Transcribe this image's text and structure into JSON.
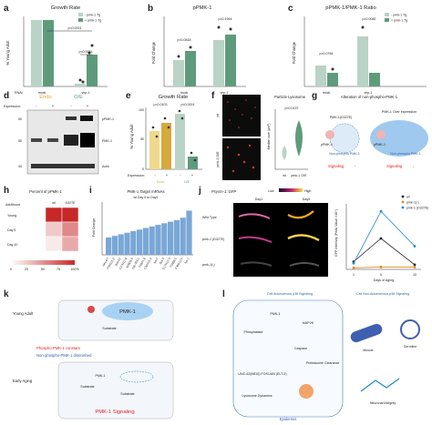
{
  "panels": {
    "a": {
      "letter": "a",
      "title": "Growth Rate",
      "ylabel": "% Young Adult",
      "legend": [
        "- pmk-1 Tg",
        "+ pmk-1 Tg"
      ],
      "rnai_label": "RNAi:",
      "pvals": [
        "p<0.0001",
        "p<0.0001"
      ],
      "colors": {
        "minus": "#b9d3c6",
        "plus": "#5e9b7c"
      }
    },
    "b": {
      "letter": "b",
      "title": "pPMK-1",
      "ylabel": "Fold Change",
      "pvals": [
        "p=0.0818",
        "p=0.1944"
      ]
    },
    "c": {
      "letter": "c",
      "title": "pPMK-1/PMK-1 Ratio",
      "ylabel": "Fold Change",
      "legend": [
        "- pmk-1 Tg",
        "+ pmk-1 Tg"
      ],
      "pvals": [
        "p=0.0764",
        "p=0.0082"
      ]
    },
    "d": {
      "letter": "d",
      "group_labels": [
        "Endo",
        "O/E"
      ],
      "expression_label": "Expression:",
      "expression_marks": [
        "-",
        "+",
        "-",
        "+"
      ],
      "kda": [
        "50",
        "50",
        "40"
      ],
      "band_labels": [
        "pPMK-1",
        "PMK-1",
        "Actin"
      ]
    },
    "e": {
      "letter": "e",
      "title": "Growth Rate",
      "ylabel": "% Young Adult",
      "pvals": [
        "p=0.0103",
        "p<0.0001"
      ],
      "expression_label": "Expression:",
      "expression_marks": [
        "-",
        "+",
        "-",
        "+"
      ],
      "group_labels": [
        "Endo",
        "O/E"
      ],
      "yticks": [
        "100",
        "50",
        "0"
      ]
    },
    "f": {
      "letter": "f",
      "title": "Particle Lysosome",
      "ylabel": "Median size (µm²)",
      "pval": "p=0.0137",
      "image_labels": [
        "wt",
        "pmk-1 O/E"
      ],
      "xlabels": [
        "wt",
        "pmk-1 O/E"
      ]
    },
    "g": {
      "letter": "g",
      "title": "Alteration of non-phospho-PMK-1",
      "left_title": "PMK-1(D327E)",
      "right_title": "PMK-1 Over expression",
      "ppmk": "pPMK-1",
      "nonphospho": "Non-phospho PMK-1",
      "signaling": "Signaling"
    },
    "h": {
      "letter": "h",
      "title": "Percent of pPMK-1",
      "col_labels": [
        "wt",
        "D327E"
      ],
      "row_header": "Adulthood",
      "rows": [
        "Young",
        "Day 5",
        "Day 10"
      ],
      "values": [
        [
          100,
          100
        ],
        [
          25,
          55
        ],
        [
          10,
          40
        ]
      ],
      "scale": [
        "0",
        "25",
        "50",
        "75",
        "100%"
      ]
    },
    "i": {
      "letter": "i",
      "title": "PMK-1 Target mRNAs",
      "subtitle": "wt Day 5 to Day1",
      "ylabel": "Fold Change",
      "genes": [
        "clec-67",
        "F55G11.2",
        "dod-22",
        "C17H12.8",
        "K08D8.5",
        "cyp-35C1",
        "F49F1.6",
        "C32H11.4",
        "lys-2",
        "ilys-3",
        "C17H12.3",
        "T24B8.5",
        "F35E12.5",
        "lys-1"
      ]
    },
    "j": {
      "letter": "j",
      "reporter": "Psysm-1::GFP",
      "low": "Low",
      "high": "High",
      "day_labels": [
        "Day1",
        "Day5"
      ],
      "row_labels": [
        "Wild Type",
        "pmk-1 (D327E)",
        "pmk-1(-)"
      ],
      "legend": [
        "wt",
        "pmk-1(-)",
        "pmk-1 (D327E)"
      ],
      "ylabel": "GFP Intensity (Peak Value ×10⁴)",
      "xlabel": "Days of Aging",
      "xticks": [
        "1",
        "5",
        "10"
      ]
    },
    "k": {
      "letter": "k",
      "stage1": "Young Adult",
      "stage2": "Early Aging",
      "pmk": "PMK-1",
      "substrate": "Substrate",
      "phospho_constant": "Phospho-PMK-1 constant",
      "nonphospho_diminished": "Non-phospho-PMK-1 diminished",
      "signaling": "PMK-1 Signaling"
    },
    "l": {
      "letter": "l",
      "cell_auto": "Cell Autonomous p38 Signaling",
      "non_auto": "Cell Non-Autonomous p38 Signaling",
      "phosphatase": "Phosphatase",
      "mapk": "MAP2K",
      "pmk": "PMK-1",
      "caspase": "Caspase",
      "proteasome": "Proteasome Clearance",
      "unc": "UNC-62(MEIS) FOS/JUN (ELT-2)",
      "lysosome": "Lysosome Dynamics",
      "epidermis": "Epidermis",
      "muscle": "Muscle",
      "germline": "Germline",
      "neuronal": "Neuronal Integrity"
    }
  },
  "chart_data": [
    {
      "type": "bar",
      "title": "Growth Rate",
      "categories": [
        "mock",
        "vhp-1"
      ],
      "series": [
        {
          "name": "- pmk-1 Tg",
          "values": [
            100,
            4
          ]
        },
        {
          "name": "+ pmk-1 Tg",
          "values": [
            100,
            48
          ]
        }
      ],
      "ylabel": "% Young Adult",
      "ylim": [
        0,
        100
      ]
    },
    {
      "type": "bar",
      "title": "pPMK-1",
      "categories": [
        "mock",
        "vhp-1"
      ],
      "series": [
        {
          "name": "- pmk-1 Tg",
          "values": [
            1.0,
            1.5
          ]
        },
        {
          "name": "+ pmk-1 Tg",
          "values": [
            1.4,
            2.0
          ]
        }
      ],
      "ylabel": "Fold Change"
    },
    {
      "type": "bar",
      "title": "pPMK-1/PMK-1 Ratio",
      "categories": [
        "mock",
        "vhp-1"
      ],
      "series": [
        {
          "name": "- pmk-1 Tg",
          "values": [
            1.0,
            2.5
          ]
        },
        {
          "name": "+ pmk-1 Tg",
          "values": [
            0.6,
            0.7
          ]
        }
      ],
      "ylabel": "Fold Change"
    },
    {
      "type": "bar",
      "title": "Growth Rate",
      "categories": [
        "Endo -",
        "Endo +",
        "O/E -",
        "O/E +"
      ],
      "values": [
        62,
        75,
        90,
        20
      ],
      "ylabel": "% Young Adult",
      "ylim": [
        0,
        100
      ]
    },
    {
      "type": "heatmap",
      "title": "Percent of pPMK-1",
      "x": [
        "wt",
        "D327E"
      ],
      "y": [
        "Young",
        "Day 5",
        "Day 10"
      ],
      "values": [
        [
          100,
          100
        ],
        [
          25,
          55
        ],
        [
          10,
          40
        ]
      ]
    },
    {
      "type": "bar",
      "title": "PMK-1 Target mRNAs",
      "categories": [
        "clec-67",
        "F55G11.2",
        "dod-22",
        "C17H12.8",
        "K08D8.5",
        "cyp-35C1",
        "F49F1.6",
        "C32H11.4",
        "lys-2",
        "ilys-3",
        "C17H12.3",
        "T24B8.5",
        "F35E12.5",
        "lys-1"
      ],
      "values": [
        2.2,
        2.4,
        2.6,
        2.8,
        3.0,
        3.2,
        3.4,
        3.6,
        3.8,
        4.0,
        4.2,
        4.4,
        4.7,
        5.6
      ],
      "ylabel": "Fold Change"
    },
    {
      "type": "line",
      "x": [
        1,
        5,
        10
      ],
      "series": [
        {
          "name": "wt",
          "values": [
            1.0,
            4.0,
            0.6
          ]
        },
        {
          "name": "pmk-1(-)",
          "values": [
            0.2,
            0.3,
            0.3
          ]
        },
        {
          "name": "pmk-1 (D327E)",
          "values": [
            0.8,
            7.5,
            3.0
          ]
        }
      ],
      "xlabel": "Days of Aging",
      "ylabel": "GFP Intensity (Peak Value ×10⁴)"
    }
  ]
}
